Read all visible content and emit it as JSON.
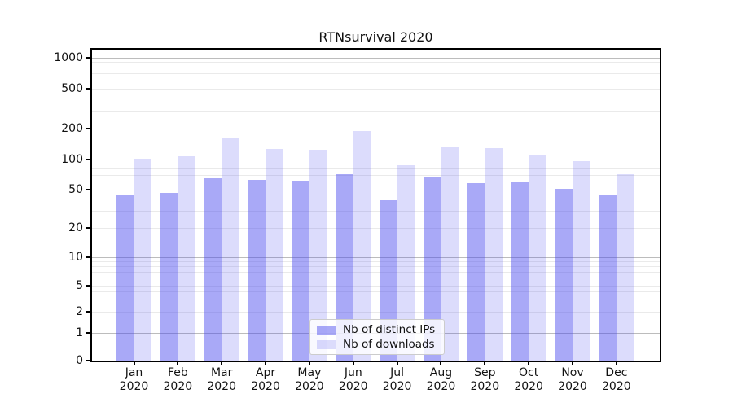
{
  "figure": {
    "title": "RTNsurvival 2020"
  },
  "chart_data": {
    "type": "bar",
    "title": "RTNsurvival 2020",
    "categories": [
      "Jan 2020",
      "Feb 2020",
      "Mar 2020",
      "Apr 2020",
      "May 2020",
      "Jun 2020",
      "Jul 2020",
      "Aug 2020",
      "Sep 2020",
      "Oct 2020",
      "Nov 2020",
      "Dec 2020"
    ],
    "series": [
      {
        "name": "Nb of distinct IPs",
        "color": "rgba(68,68,238,0.46)",
        "values": [
          44,
          46,
          65,
          63,
          61,
          72,
          39,
          67,
          58,
          60,
          51,
          44
        ]
      },
      {
        "name": "Nb of downloads",
        "color": "rgba(68,68,238,0.19)",
        "values": [
          102,
          108,
          162,
          127,
          124,
          190,
          87,
          131,
          129,
          110,
          96,
          71
        ]
      }
    ],
    "xlabel": "",
    "ylabel": "",
    "yscale": "symlog",
    "y_ticks": [
      0,
      1,
      2,
      5,
      10,
      20,
      50,
      100,
      200,
      500,
      1000
    ],
    "ylim": [
      0,
      1200
    ],
    "grid": "both",
    "legend_position": "lower center",
    "colors": {
      "major_grid": "#bcbcbc",
      "minor_grid": "#eaeaea",
      "spine": "#000000",
      "text": "#111111"
    }
  }
}
